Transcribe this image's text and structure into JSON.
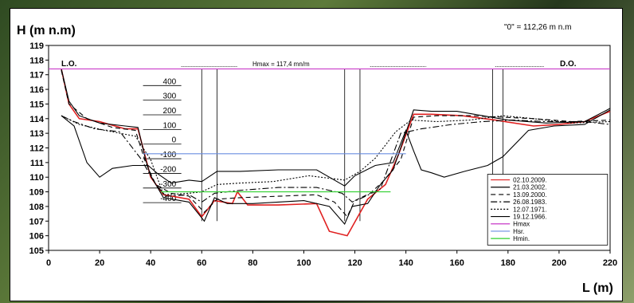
{
  "chart_data": {
    "type": "line",
    "title": "",
    "ylabel": "H (m n.m)",
    "xlabel": "L (m)",
    "datum_note": "\"0\" = 112,26 m n.m",
    "xlim": [
      0,
      220
    ],
    "ylim": [
      105,
      119
    ],
    "xticks": [
      0,
      20,
      40,
      60,
      80,
      100,
      120,
      140,
      160,
      180,
      200,
      220
    ],
    "yticks": [
      105,
      106,
      107,
      108,
      109,
      110,
      111,
      112,
      113,
      114,
      115,
      116,
      117,
      118,
      119
    ],
    "grid": false,
    "legend_position": "bottom-right",
    "bank_labels": {
      "left": "L.O.",
      "right": "D.O."
    },
    "hmax_annotation": "Hmax = 117,4 mn/m",
    "gauge_scale": {
      "labels": [
        "400",
        "300",
        "200",
        "100",
        "0",
        "-100",
        "-200",
        "-300",
        "-400"
      ],
      "values": [
        400,
        300,
        200,
        100,
        0,
        -100,
        -200,
        -300,
        -400
      ],
      "zero_level": 112.26
    },
    "verticals": [
      60,
      66,
      116,
      122,
      174,
      178
    ],
    "series": [
      {
        "name": "02.10.2009.",
        "color": "#e02020",
        "dash": "",
        "points": [
          [
            5,
            117.4
          ],
          [
            8,
            115
          ],
          [
            12,
            114
          ],
          [
            20,
            113.8
          ],
          [
            30,
            113.3
          ],
          [
            35,
            113.3
          ],
          [
            40,
            110
          ],
          [
            45,
            108.8
          ],
          [
            55,
            108.5
          ],
          [
            60,
            107.3
          ],
          [
            65,
            108.4
          ],
          [
            72,
            108.2
          ],
          [
            74,
            109
          ],
          [
            78,
            108.1
          ],
          [
            90,
            108.1
          ],
          [
            105,
            108.2
          ],
          [
            110,
            106.3
          ],
          [
            117,
            106
          ],
          [
            125,
            108.5
          ],
          [
            132,
            109.5
          ],
          [
            137,
            111.5
          ],
          [
            143,
            114.3
          ],
          [
            150,
            114.3
          ],
          [
            162,
            114.2
          ],
          [
            175,
            113.9
          ],
          [
            190,
            113.5
          ],
          [
            200,
            113.6
          ],
          [
            210,
            113.8
          ],
          [
            220,
            114.5
          ]
        ]
      },
      {
        "name": "21.03.2002.",
        "color": "#000000",
        "dash": "",
        "points": [
          [
            5,
            117.4
          ],
          [
            8,
            115.2
          ],
          [
            12,
            114.2
          ],
          [
            20,
            113.7
          ],
          [
            30,
            113.5
          ],
          [
            35,
            113.4
          ],
          [
            38,
            111.2
          ],
          [
            40,
            110.1
          ],
          [
            45,
            108.6
          ],
          [
            55,
            108.3
          ],
          [
            61,
            107
          ],
          [
            65,
            108.6
          ],
          [
            70,
            108.2
          ],
          [
            80,
            108.2
          ],
          [
            90,
            108.3
          ],
          [
            100,
            108.4
          ],
          [
            110,
            108
          ],
          [
            116,
            106.8
          ],
          [
            119,
            108
          ],
          [
            125,
            108.2
          ],
          [
            130,
            109.5
          ],
          [
            135,
            110.5
          ],
          [
            143,
            114.6
          ],
          [
            150,
            114.5
          ],
          [
            160,
            114.5
          ],
          [
            170,
            114.2
          ],
          [
            180,
            113.9
          ],
          [
            195,
            113.7
          ],
          [
            210,
            113.8
          ],
          [
            220,
            114.7
          ]
        ]
      },
      {
        "name": "13.09.2000.",
        "color": "#000000",
        "dash": "6 4",
        "points": [
          [
            5,
            117.3
          ],
          [
            8,
            115
          ],
          [
            15,
            114
          ],
          [
            25,
            113.4
          ],
          [
            34,
            113.2
          ],
          [
            38,
            111
          ],
          [
            42,
            109.5
          ],
          [
            48,
            108.9
          ],
          [
            55,
            108.7
          ],
          [
            61,
            107.6
          ],
          [
            66,
            108.5
          ],
          [
            75,
            108.6
          ],
          [
            90,
            108.7
          ],
          [
            105,
            108.8
          ],
          [
            112,
            108.3
          ],
          [
            117,
            107.3
          ],
          [
            120,
            108.4
          ],
          [
            126,
            108.9
          ],
          [
            131,
            109.7
          ],
          [
            138,
            111.2
          ],
          [
            143,
            114.1
          ],
          [
            152,
            114.2
          ],
          [
            165,
            114.2
          ],
          [
            178,
            114.1
          ],
          [
            190,
            114
          ],
          [
            205,
            113.8
          ],
          [
            220,
            113.9
          ]
        ]
      },
      {
        "name": "26.08.1983.",
        "color": "#000000",
        "dash": "8 3 2 3",
        "points": [
          [
            5,
            114.2
          ],
          [
            10,
            113.8
          ],
          [
            18,
            113.3
          ],
          [
            28,
            113.1
          ],
          [
            36,
            111.3
          ],
          [
            42,
            109.5
          ],
          [
            46,
            108.7
          ],
          [
            55,
            108.8
          ],
          [
            60,
            108.3
          ],
          [
            65,
            108.9
          ],
          [
            75,
            109.1
          ],
          [
            90,
            109.3
          ],
          [
            105,
            109.3
          ],
          [
            115,
            108.9
          ],
          [
            119,
            108.3
          ],
          [
            123,
            108.6
          ],
          [
            130,
            109.2
          ],
          [
            138,
            113
          ],
          [
            146,
            113.3
          ],
          [
            158,
            113.6
          ],
          [
            170,
            113.8
          ],
          [
            182,
            113.9
          ],
          [
            195,
            113.8
          ],
          [
            210,
            113.8
          ],
          [
            220,
            113.6
          ]
        ]
      },
      {
        "name": "12.07.1971.",
        "color": "#000000",
        "dash": "2 2",
        "points": [
          [
            5,
            114.2
          ],
          [
            12,
            113.6
          ],
          [
            22,
            113.2
          ],
          [
            34,
            112.8
          ],
          [
            40,
            111.2
          ],
          [
            45,
            108.8
          ],
          [
            55,
            108.9
          ],
          [
            60,
            109
          ],
          [
            66,
            109.5
          ],
          [
            75,
            109.6
          ],
          [
            88,
            109.7
          ],
          [
            102,
            110.1
          ],
          [
            116,
            109.8
          ],
          [
            122,
            110.4
          ],
          [
            128,
            111.3
          ],
          [
            136,
            113.1
          ],
          [
            142,
            113.9
          ],
          [
            152,
            113.8
          ],
          [
            165,
            113.9
          ],
          [
            178,
            114.2
          ],
          [
            190,
            114
          ],
          [
            205,
            113.7
          ],
          [
            220,
            113.8
          ]
        ]
      },
      {
        "name": "19.12.1966.",
        "color": "#000000",
        "dash": "",
        "points": [
          [
            5,
            114.2
          ],
          [
            10,
            113.5
          ],
          [
            15,
            111
          ],
          [
            20,
            110
          ],
          [
            25,
            110.6
          ],
          [
            33,
            110.8
          ],
          [
            39,
            110.8
          ],
          [
            43,
            110.2
          ],
          [
            48,
            109.6
          ],
          [
            55,
            109.8
          ],
          [
            60,
            109.7
          ],
          [
            66,
            110.4
          ],
          [
            75,
            110.4
          ],
          [
            90,
            110.5
          ],
          [
            105,
            110.5
          ],
          [
            116,
            109.4
          ],
          [
            120,
            110.1
          ],
          [
            128,
            110.8
          ],
          [
            135,
            111
          ],
          [
            140,
            113.2
          ],
          [
            143,
            111.8
          ],
          [
            146,
            110.5
          ],
          [
            150,
            110.3
          ],
          [
            155,
            110
          ],
          [
            163,
            110.4
          ],
          [
            172,
            110.8
          ],
          [
            178,
            111.4
          ],
          [
            188,
            113.2
          ],
          [
            198,
            113.5
          ],
          [
            210,
            113.6
          ],
          [
            220,
            114.6
          ]
        ]
      },
      {
        "name": "Hmax",
        "color": "#c83ac8",
        "dash": "",
        "points": [
          [
            0,
            117.4
          ],
          [
            220,
            117.4
          ]
        ]
      },
      {
        "name": "Hsr.",
        "color": "#6a8de0",
        "dash": "",
        "points": [
          [
            37,
            111.6
          ],
          [
            140,
            111.6
          ]
        ]
      },
      {
        "name": "Hmin.",
        "color": "#2fd02f",
        "dash": "",
        "points": [
          [
            44,
            109
          ],
          [
            134,
            109
          ]
        ]
      }
    ]
  }
}
